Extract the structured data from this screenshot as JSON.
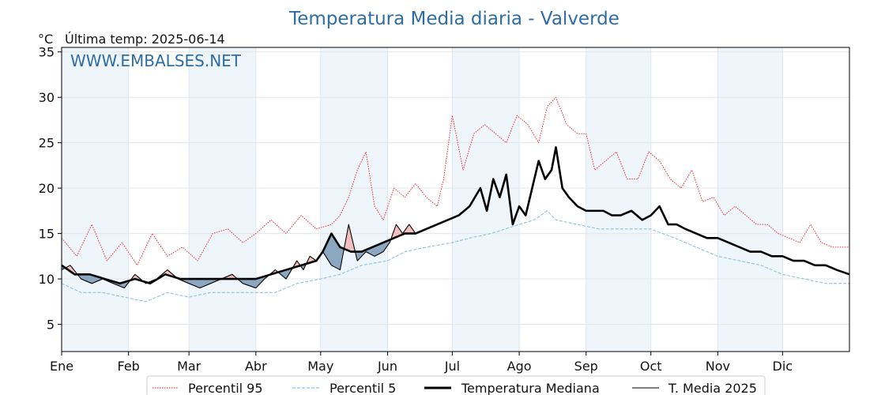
{
  "chart_data": {
    "type": "line",
    "title": "Temperatura Media diaria - Valverde",
    "unit_label": "°C",
    "last_temp_label": "Última temp: 2025-06-14",
    "watermark": "WWW.EMBALSES.NET",
    "ylim": [
      2,
      35.5
    ],
    "xlim": [
      1,
      366
    ],
    "yticks": [
      5,
      10,
      15,
      20,
      25,
      30,
      35
    ],
    "month_ticks": [
      {
        "label": "Ene",
        "day": 1
      },
      {
        "label": "Feb",
        "day": 32
      },
      {
        "label": "Mar",
        "day": 60
      },
      {
        "label": "Abr",
        "day": 91
      },
      {
        "label": "May",
        "day": 121
      },
      {
        "label": "Jun",
        "day": 152
      },
      {
        "label": "Jul",
        "day": 182
      },
      {
        "label": "Ago",
        "day": 213
      },
      {
        "label": "Sep",
        "day": 244
      },
      {
        "label": "Oct",
        "day": 274
      },
      {
        "label": "Nov",
        "day": 305
      },
      {
        "label": "Dic",
        "day": 335
      }
    ],
    "grid": true,
    "legend_position": "bottom-center",
    "colors": {
      "p95": "#ee1111",
      "p5": "#8cc3d9",
      "median": "#000000",
      "current": "#000000",
      "above_fill": "#f2b8b8",
      "below_fill": "#7f9fba",
      "band": "#eef5fb",
      "title": "#2e6da4"
    },
    "series": [
      {
        "name": "Percentil 95",
        "key": "p95",
        "style": "dotted-red",
        "x": [
          1,
          8,
          15,
          22,
          29,
          36,
          43,
          50,
          57,
          64,
          71,
          78,
          85,
          91,
          98,
          105,
          112,
          119,
          126,
          130,
          134,
          138,
          142,
          146,
          150,
          155,
          160,
          165,
          170,
          175,
          178,
          182,
          187,
          192,
          197,
          202,
          207,
          212,
          217,
          222,
          226,
          230,
          235,
          240,
          244,
          248,
          253,
          258,
          263,
          268,
          273,
          278,
          283,
          288,
          293,
          298,
          303,
          308,
          313,
          318,
          323,
          328,
          333,
          338,
          343,
          348,
          353,
          358,
          366
        ],
        "y": [
          14.5,
          12.5,
          16,
          12,
          14,
          11.5,
          15,
          12.5,
          13.5,
          12,
          15,
          15.5,
          14,
          15,
          16.5,
          15,
          17,
          15.5,
          16,
          17,
          19,
          22,
          24,
          18,
          16.5,
          20,
          19,
          20.5,
          19,
          18,
          21,
          28,
          22,
          26,
          27,
          26,
          25,
          28,
          27,
          25,
          29,
          30,
          27,
          26,
          26,
          22,
          23,
          24,
          21,
          21,
          24,
          23,
          21,
          20,
          22,
          18.5,
          19,
          17,
          18,
          17,
          16,
          16,
          15,
          14.5,
          14,
          16,
          14,
          13.5,
          13.5
        ]
      },
      {
        "name": "Percentil 5",
        "key": "p5",
        "style": "dashed-blue",
        "x": [
          1,
          10,
          20,
          30,
          40,
          50,
          60,
          70,
          80,
          91,
          100,
          110,
          121,
          130,
          140,
          152,
          160,
          170,
          182,
          190,
          200,
          213,
          220,
          226,
          230,
          240,
          250,
          260,
          274,
          285,
          295,
          305,
          315,
          325,
          335,
          345,
          355,
          366
        ],
        "y": [
          9.5,
          8.5,
          8.5,
          8,
          7.5,
          8.5,
          8,
          8.5,
          8.5,
          8.5,
          8.5,
          9.5,
          10,
          10.5,
          11.5,
          12,
          13,
          13.5,
          14,
          14.5,
          15,
          16,
          16.5,
          17.5,
          16.5,
          16,
          15.5,
          15.5,
          15.5,
          14.5,
          13.5,
          12.5,
          12,
          11.5,
          10.5,
          10,
          9.5,
          9.5
        ]
      },
      {
        "name": "Temperatura Mediana",
        "key": "median",
        "style": "thick-black",
        "x": [
          1,
          7,
          14,
          21,
          28,
          35,
          42,
          49,
          56,
          63,
          70,
          77,
          84,
          91,
          98,
          105,
          112,
          119,
          122,
          126,
          130,
          135,
          140,
          145,
          150,
          155,
          160,
          165,
          170,
          175,
          180,
          185,
          190,
          195,
          198,
          201,
          204,
          207,
          210,
          213,
          216,
          219,
          222,
          225,
          228,
          230,
          233,
          236,
          240,
          244,
          248,
          252,
          256,
          260,
          265,
          270,
          274,
          278,
          282,
          286,
          290,
          295,
          300,
          305,
          310,
          315,
          320,
          325,
          330,
          335,
          340,
          345,
          350,
          355,
          360,
          366
        ],
        "y": [
          11.5,
          10.5,
          10.5,
          10,
          9.5,
          10,
          9.5,
          10.5,
          10,
          10,
          10,
          10,
          10,
          10,
          10.5,
          11,
          11.5,
          12,
          13,
          15,
          13.5,
          13,
          13,
          13.5,
          14,
          14.5,
          15,
          15,
          15.5,
          16,
          16.5,
          17,
          18,
          20,
          17.5,
          21,
          19,
          21.5,
          16,
          18,
          17,
          20,
          23,
          21,
          22,
          24.5,
          20,
          19,
          18,
          17.5,
          17.5,
          17.5,
          17,
          17,
          17.5,
          16.5,
          17,
          18,
          16,
          16,
          15.5,
          15,
          14.5,
          14.5,
          14,
          13.5,
          13,
          13,
          12.5,
          12.5,
          12,
          12,
          11.5,
          11.5,
          11,
          10.5
        ]
      },
      {
        "name": "T. Media 2025",
        "key": "current",
        "style": "thin-black",
        "x": [
          1,
          5,
          10,
          15,
          20,
          25,
          30,
          35,
          40,
          45,
          50,
          55,
          60,
          65,
          70,
          75,
          80,
          85,
          91,
          95,
          100,
          105,
          110,
          113,
          116,
          119,
          122,
          126,
          130,
          134,
          138,
          142,
          146,
          150,
          153,
          156,
          159,
          162,
          165
        ],
        "y": [
          11,
          11.5,
          10,
          9.5,
          10,
          9.5,
          9,
          10.5,
          9.5,
          10,
          11,
          10,
          9.5,
          9,
          9.5,
          10,
          10.5,
          9.5,
          9,
          10,
          11,
          10,
          12,
          11,
          12.5,
          12,
          13,
          11.5,
          11,
          16,
          12,
          13,
          12.5,
          13,
          14,
          16,
          15,
          16,
          15
        ]
      }
    ]
  },
  "legend": {
    "p95": "Percentil 95",
    "p5": "Percentil 5",
    "median": "Temperatura Mediana",
    "current": "T. Media 2025"
  }
}
